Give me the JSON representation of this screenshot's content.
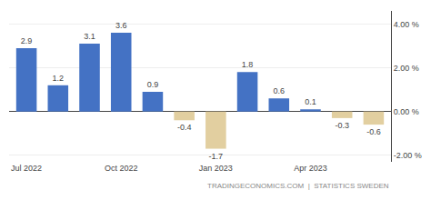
{
  "chart_data": {
    "type": "bar",
    "categories": [
      "Jul 2022",
      null,
      null,
      "Oct 2022",
      null,
      null,
      "Jan 2023",
      null,
      null,
      "Apr 2023",
      null,
      null
    ],
    "values": [
      2.9,
      1.2,
      3.1,
      3.6,
      0.9,
      -0.4,
      -1.7,
      1.8,
      0.6,
      0.1,
      -0.3,
      -0.6
    ],
    "colors": [
      "#4472c4",
      "#4472c4",
      "#4472c4",
      "#4472c4",
      "#4472c4",
      "#e2cfa0",
      "#e2cfa0",
      "#4472c4",
      "#4472c4",
      "#4472c4",
      "#e2cfa0",
      "#e2cfa0"
    ],
    "ylim": [
      -2.3,
      4.6
    ],
    "yticks": [
      {
        "value": -2.0,
        "label": "-2.00 %"
      },
      {
        "value": 0.0,
        "label": "0.00 %"
      },
      {
        "value": 2.0,
        "label": "2.00 %"
      },
      {
        "value": 4.0,
        "label": "4.00 %"
      }
    ],
    "grid": true,
    "data_labels": true,
    "annotations": [
      "TRADINGECONOMICS.COM  |  STATISTICS SWEDEN"
    ]
  }
}
